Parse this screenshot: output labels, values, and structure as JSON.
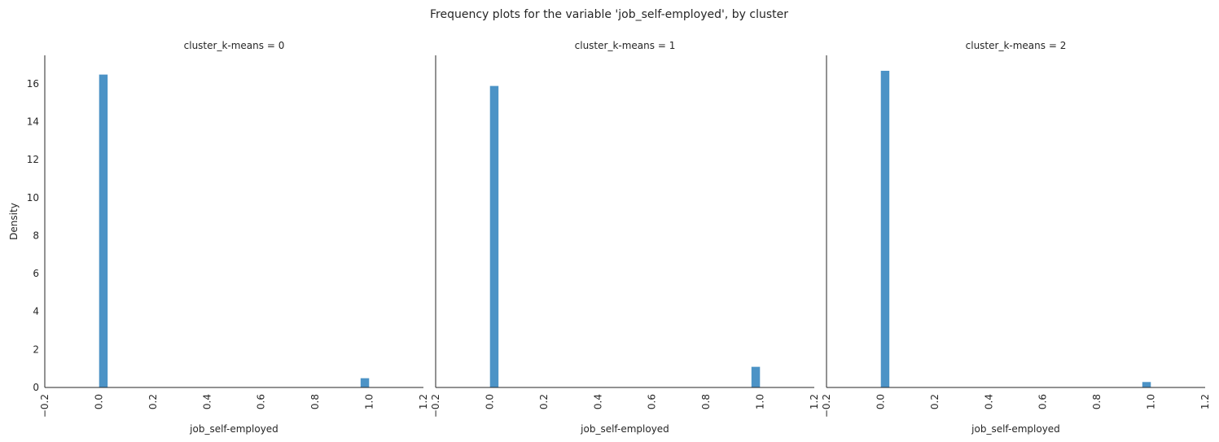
{
  "chart_data": {
    "type": "bar",
    "title": "Frequency plots for the variable 'job_self-employed', by cluster",
    "ylabel": "Density",
    "xlabel": "job_self-employed",
    "xlim": [
      -0.2,
      1.2
    ],
    "ylim": [
      0,
      17.5
    ],
    "x_ticks": [
      "−0.2",
      "0.0",
      "0.2",
      "0.4",
      "0.6",
      "0.8",
      "1.0",
      "1.2"
    ],
    "x_tick_values": [
      -0.2,
      0.0,
      0.2,
      0.4,
      0.6,
      0.8,
      1.0,
      1.2
    ],
    "y_ticks": [
      "0",
      "2",
      "4",
      "6",
      "8",
      "10",
      "12",
      "14",
      "16"
    ],
    "y_tick_values": [
      0,
      2,
      4,
      6,
      8,
      10,
      12,
      14,
      16
    ],
    "bin_width": 0.0333,
    "bar_color": "#4c93c6",
    "grid": false,
    "panels": [
      {
        "title": "cluster_k-means = 0",
        "bars": [
          {
            "x_start": 0.0,
            "value": 16.5
          },
          {
            "x_start": 0.9667,
            "value": 0.5
          }
        ]
      },
      {
        "title": "cluster_k-means = 1",
        "bars": [
          {
            "x_start": 0.0,
            "value": 15.9
          },
          {
            "x_start": 0.9667,
            "value": 1.1
          }
        ]
      },
      {
        "title": "cluster_k-means = 2",
        "bars": [
          {
            "x_start": 0.0,
            "value": 16.7
          },
          {
            "x_start": 0.9667,
            "value": 0.3
          }
        ]
      }
    ]
  }
}
